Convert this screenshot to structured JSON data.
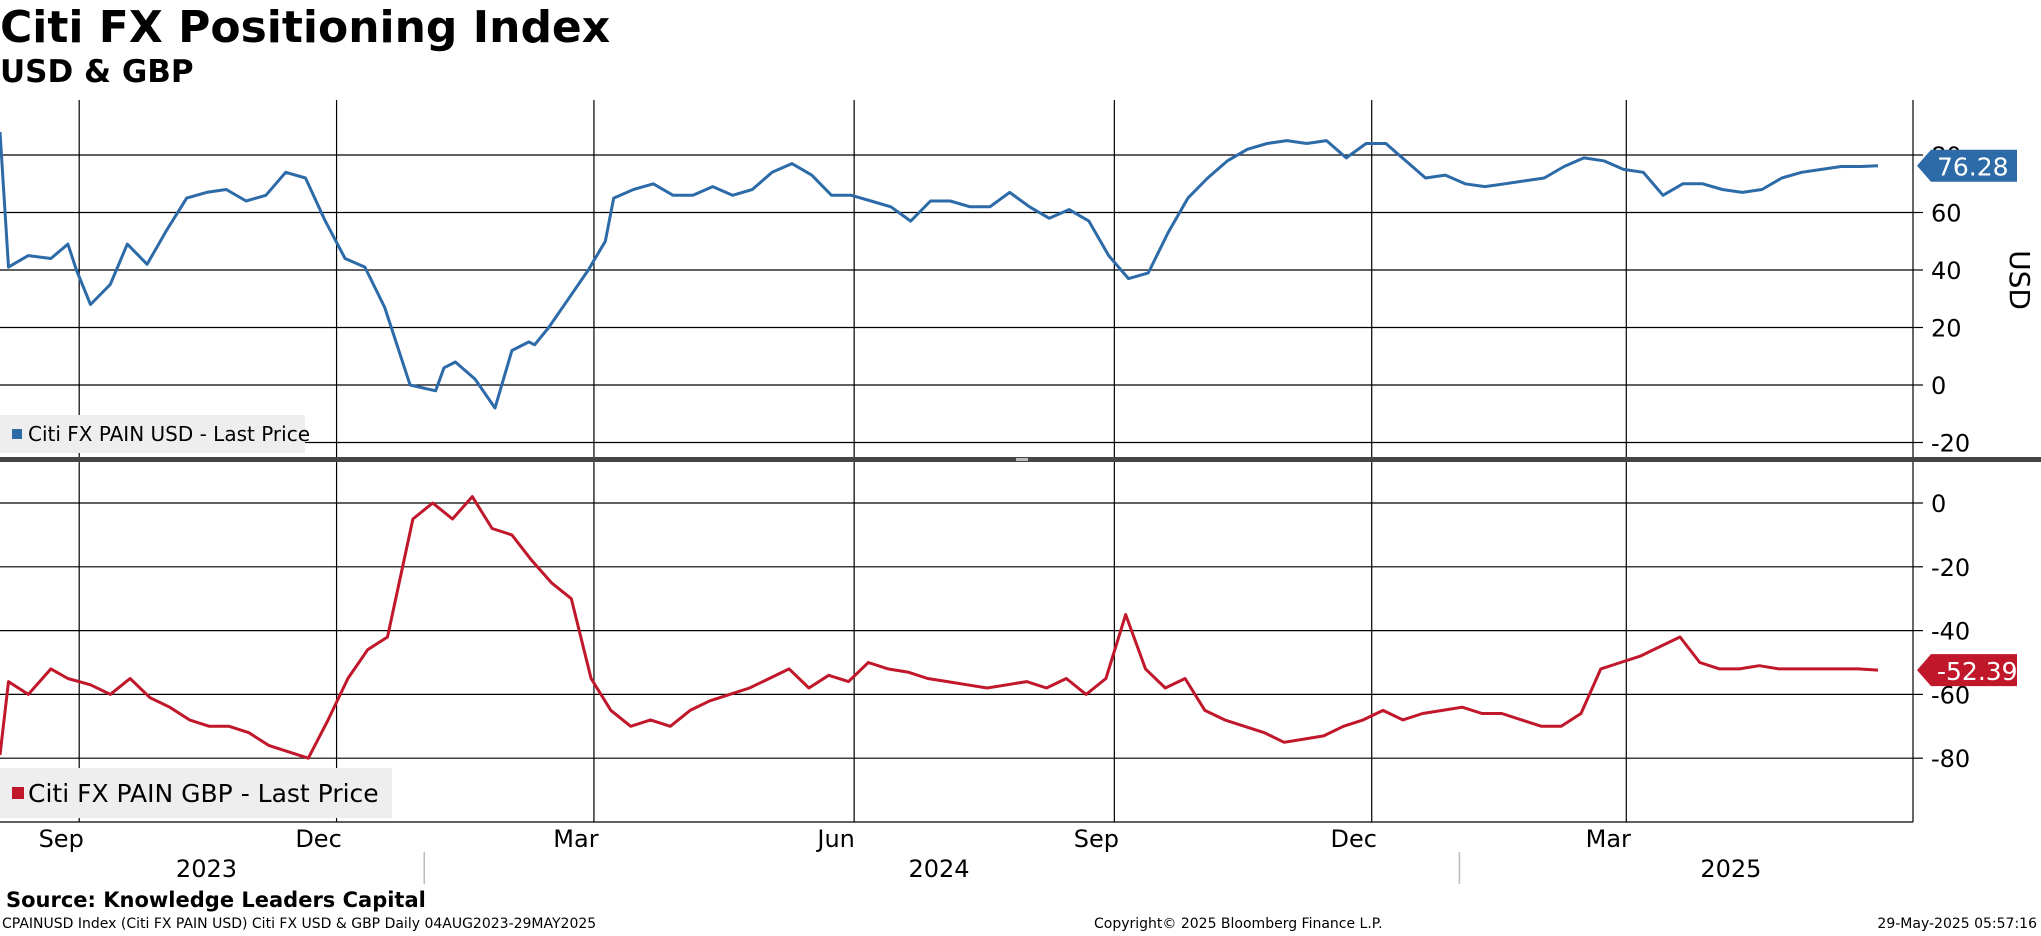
{
  "title": "Citi FX Positioning Index",
  "subtitle": "USD & GBP",
  "source": "Source: Knowledge Leaders Capital",
  "footer": {
    "left": "CPAINUSD Index (Citi FX PAIN USD) Citi FX USD & GBP  Daily 04AUG2023-29MAY2025",
    "center": "Copyright© 2025 Bloomberg Finance L.P.",
    "right": "29-May-2025 05:57:16"
  },
  "colors": {
    "usd": "#2c6aa8",
    "gbp": "#c0172b"
  },
  "chart_data": [
    {
      "type": "line",
      "panel": "top",
      "ylabel": "USD",
      "ylim": [
        -20,
        100
      ],
      "yticks": [
        "80",
        "60",
        "40",
        "20",
        "0",
        "-20"
      ],
      "legend": "Citi FX PAIN USD - Last Price",
      "legend_position": "bottom-left",
      "last_value_label": "76.28",
      "grid": true,
      "series": [
        {
          "name": "Citi FX PAIN USD - Last Price",
          "x": [
            "2023-08-04",
            "2023-08-07",
            "2023-08-14",
            "2023-08-22",
            "2023-08-28",
            "2023-08-31",
            "2023-09-05",
            "2023-09-12",
            "2023-09-18",
            "2023-09-25",
            "2023-10-02",
            "2023-10-09",
            "2023-10-16",
            "2023-10-23",
            "2023-10-30",
            "2023-11-06",
            "2023-11-13",
            "2023-11-20",
            "2023-11-27",
            "2023-12-04",
            "2023-12-11",
            "2023-12-18",
            "2023-12-27",
            "2024-01-05",
            "2024-01-08",
            "2024-01-12",
            "2024-01-19",
            "2024-01-26",
            "2024-02-01",
            "2024-02-07",
            "2024-02-09",
            "2024-02-14",
            "2024-02-21",
            "2024-02-28",
            "2024-03-05",
            "2024-03-08",
            "2024-03-15",
            "2024-03-22",
            "2024-03-29",
            "2024-04-05",
            "2024-04-12",
            "2024-04-19",
            "2024-04-26",
            "2024-05-03",
            "2024-05-10",
            "2024-05-17",
            "2024-05-24",
            "2024-05-31",
            "2024-06-07",
            "2024-06-14",
            "2024-06-21",
            "2024-06-28",
            "2024-07-05",
            "2024-07-12",
            "2024-07-19",
            "2024-07-26",
            "2024-08-02",
            "2024-08-09",
            "2024-08-16",
            "2024-08-23",
            "2024-08-30",
            "2024-09-06",
            "2024-09-13",
            "2024-09-20",
            "2024-09-27",
            "2024-10-04",
            "2024-10-11",
            "2024-10-18",
            "2024-10-25",
            "2024-11-01",
            "2024-11-08",
            "2024-11-15",
            "2024-11-22",
            "2024-11-29",
            "2024-12-06",
            "2024-12-13",
            "2024-12-20",
            "2024-12-27",
            "2025-01-03",
            "2025-01-10",
            "2025-01-17",
            "2025-01-24",
            "2025-01-31",
            "2025-02-07",
            "2025-02-14",
            "2025-02-21",
            "2025-02-28",
            "2025-03-07",
            "2025-03-14",
            "2025-03-21",
            "2025-03-28",
            "2025-04-04",
            "2025-04-11",
            "2025-04-18",
            "2025-04-25",
            "2025-05-02",
            "2025-05-09",
            "2025-05-16",
            "2025-05-23",
            "2025-05-29"
          ],
          "values": [
            88,
            41,
            45,
            44,
            49,
            40,
            28,
            35,
            49,
            42,
            54,
            65,
            67,
            68,
            64,
            66,
            74,
            72,
            57,
            44,
            41,
            27,
            0,
            -2,
            6,
            8,
            2,
            -8,
            12,
            15,
            14,
            20,
            30,
            40,
            50,
            65,
            68,
            70,
            66,
            66,
            69,
            66,
            68,
            74,
            77,
            73,
            66,
            66,
            64,
            62,
            57,
            64,
            64,
            62,
            62,
            67,
            62,
            58,
            61,
            57,
            45,
            37,
            39,
            53,
            65,
            72,
            78,
            82,
            84,
            85,
            84,
            85,
            79,
            84,
            84,
            78,
            72,
            73,
            70,
            69,
            70,
            71,
            72,
            76,
            79,
            78,
            75,
            74,
            66,
            70,
            70,
            68,
            67,
            68,
            72,
            74,
            75,
            76,
            76,
            76.28
          ]
        }
      ]
    },
    {
      "type": "line",
      "panel": "bottom",
      "ylim": [
        -100,
        8
      ],
      "yticks": [
        "0",
        "-20",
        "-40",
        "-60",
        "-80"
      ],
      "legend": "Citi FX PAIN GBP - Last Price",
      "legend_position": "bottom-left",
      "last_value_label": "-52.39",
      "grid": true,
      "series": [
        {
          "name": "Citi FX PAIN GBP - Last Price",
          "x": [
            "2023-08-04",
            "2023-08-07",
            "2023-08-14",
            "2023-08-22",
            "2023-08-28",
            "2023-09-05",
            "2023-09-12",
            "2023-09-19",
            "2023-09-26",
            "2023-10-03",
            "2023-10-10",
            "2023-10-17",
            "2023-10-24",
            "2023-10-31",
            "2023-11-07",
            "2023-11-14",
            "2023-11-21",
            "2023-11-28",
            "2023-12-05",
            "2023-12-12",
            "2023-12-19",
            "2023-12-28",
            "2024-01-04",
            "2024-01-11",
            "2024-01-18",
            "2024-01-25",
            "2024-02-01",
            "2024-02-08",
            "2024-02-15",
            "2024-02-22",
            "2024-02-29",
            "2024-03-07",
            "2024-03-14",
            "2024-03-21",
            "2024-03-28",
            "2024-04-04",
            "2024-04-11",
            "2024-04-18",
            "2024-04-25",
            "2024-05-02",
            "2024-05-09",
            "2024-05-16",
            "2024-05-23",
            "2024-05-30",
            "2024-06-06",
            "2024-06-13",
            "2024-06-20",
            "2024-06-27",
            "2024-07-04",
            "2024-07-11",
            "2024-07-18",
            "2024-07-25",
            "2024-08-01",
            "2024-08-08",
            "2024-08-15",
            "2024-08-22",
            "2024-08-29",
            "2024-09-05",
            "2024-09-12",
            "2024-09-19",
            "2024-09-26",
            "2024-10-03",
            "2024-10-10",
            "2024-10-17",
            "2024-10-24",
            "2024-10-31",
            "2024-11-07",
            "2024-11-14",
            "2024-11-21",
            "2024-11-28",
            "2024-12-05",
            "2024-12-12",
            "2024-12-19",
            "2024-12-26",
            "2025-01-02",
            "2025-01-09",
            "2025-01-16",
            "2025-01-23",
            "2025-01-30",
            "2025-02-06",
            "2025-02-13",
            "2025-02-20",
            "2025-02-27",
            "2025-03-06",
            "2025-03-13",
            "2025-03-20",
            "2025-03-27",
            "2025-04-03",
            "2025-04-10",
            "2025-04-17",
            "2025-04-24",
            "2025-05-01",
            "2025-05-08",
            "2025-05-15",
            "2025-05-22",
            "2025-05-29"
          ],
          "values": [
            -79,
            -56,
            -60,
            -52,
            -55,
            -57,
            -60,
            -55,
            -61,
            -64,
            -68,
            -70,
            -70,
            -72,
            -76,
            -78,
            -80,
            -68,
            -55,
            -46,
            -42,
            -5,
            0,
            -5,
            2,
            -8,
            -10,
            -18,
            -25,
            -30,
            -55,
            -65,
            -70,
            -68,
            -70,
            -65,
            -62,
            -60,
            -58,
            -55,
            -52,
            -58,
            -54,
            -56,
            -50,
            -52,
            -53,
            -55,
            -56,
            -57,
            -58,
            -57,
            -56,
            -58,
            -55,
            -60,
            -55,
            -35,
            -52,
            -58,
            -55,
            -65,
            -68,
            -70,
            -72,
            -75,
            -74,
            -73,
            -70,
            -68,
            -65,
            -68,
            -66,
            -65,
            -64,
            -66,
            -66,
            -68,
            -70,
            -70,
            -66,
            -52,
            -50,
            -48,
            -45,
            -42,
            -50,
            -52,
            -52,
            -51,
            -52,
            -52,
            -52,
            -52,
            -52,
            -52.39
          ]
        }
      ]
    }
  ],
  "x_axis": {
    "month_labels": [
      "Sep",
      "Dec",
      "Mar",
      "Jun",
      "Sep",
      "Dec",
      "Mar"
    ],
    "month_dates": [
      "2023-09-01",
      "2023-12-01",
      "2024-03-01",
      "2024-06-01",
      "2024-09-01",
      "2024-12-01",
      "2025-03-01"
    ],
    "year_labels": [
      "2023",
      "2024",
      "2025"
    ],
    "year_dates": [
      "2023-10-16",
      "2024-07-01",
      "2025-04-07"
    ],
    "year_boundaries": [
      "2024-01-01",
      "2025-01-01"
    ]
  }
}
